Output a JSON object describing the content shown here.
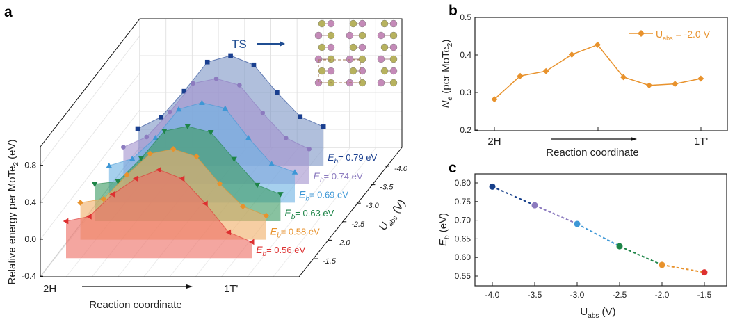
{
  "chart_data": [
    {
      "panel": "a",
      "type": "area",
      "ylabel": {
        "main": "Relative energy per MoTe",
        "sub": "2",
        "unit": " (eV)"
      },
      "xlabel": "Reaction coordinate",
      "x_start_label": "2H",
      "x_end_label": "1T'",
      "zlabel": {
        "main": "U",
        "sub": "abs",
        "unit": " (V)"
      },
      "yticks": [
        "0.8",
        "0.4",
        "0.0",
        "-0.4"
      ],
      "ytick_values": [
        0.8,
        0.4,
        0.0,
        -0.4
      ],
      "zticks": [
        "-1.5",
        "-2.0",
        "-2.5",
        "-3.0",
        "-3.5",
        "-4.0"
      ],
      "annotation": "TS",
      "series": [
        {
          "u": -4.0,
          "color": "#1a3f8f",
          "fill": "#7f97c6",
          "marker": "square",
          "eb_label": "= 0.79 eV",
          "values": [
            0,
            0.125,
            0.405,
            0.72,
            0.79,
            0.69,
            0.39,
            0.13,
            0.02
          ]
        },
        {
          "u": -3.5,
          "color": "#8c7bbf",
          "fill": "#a595cf",
          "marker": "circle",
          "eb_label": "= 0.74 eV",
          "values": [
            0,
            0.11,
            0.38,
            0.69,
            0.74,
            0.67,
            0.37,
            0.1,
            -0.02
          ]
        },
        {
          "u": -3.0,
          "color": "#3d97d6",
          "fill": "#6fb3e4",
          "marker": "triangle-up",
          "eb_label": "= 0.69 eV",
          "values": [
            0,
            0.075,
            0.3,
            0.61,
            0.68,
            0.62,
            0.3,
            0.02,
            -0.07
          ]
        },
        {
          "u": -2.5,
          "color": "#1e8548",
          "fill": "#3f9d66",
          "marker": "triangle-down",
          "eb_label": "= 0.63 eV",
          "values": [
            0,
            0.03,
            0.28,
            0.575,
            0.625,
            0.56,
            0.27,
            -0.01,
            -0.11
          ]
        },
        {
          "u": -2.0,
          "color": "#e8922c",
          "fill": "#f0b06a",
          "marker": "diamond",
          "eb_label": "= 0.58 eV",
          "values": [
            0,
            0.04,
            0.3,
            0.53,
            0.58,
            0.5,
            0.205,
            -0.04,
            -0.14
          ]
        },
        {
          "u": -1.5,
          "color": "#dd3030",
          "fill": "#ee6f66",
          "marker": "triangle-left",
          "eb_label": "= 0.56 eV",
          "values": [
            0,
            0.05,
            0.29,
            0.46,
            0.555,
            0.46,
            0.19,
            -0.12,
            -0.225
          ]
        }
      ],
      "eb_symbol": {
        "main": "E",
        "sub": "b"
      }
    },
    {
      "panel": "b",
      "type": "line",
      "ylabel": {
        "main": "N",
        "sub": "e",
        "mid": " (per MoTe",
        "sub2": "2",
        "end": ")"
      },
      "xlabel": "Reaction coordinate",
      "x_start_label": "2H",
      "x_end_label": "1T'",
      "ylim": [
        0.2,
        0.5
      ],
      "yticks": [
        "0.5",
        "0.4",
        "0.3",
        "0.2"
      ],
      "ytick_values": [
        0.5,
        0.4,
        0.3,
        0.2
      ],
      "color": "#e8922c",
      "legend": {
        "main": "U",
        "sub": "abs",
        "rest": " = -2.0 V",
        "placement": "top-right"
      },
      "values": [
        0.282,
        0.344,
        0.357,
        0.401,
        0.427,
        0.341,
        0.319,
        0.323,
        0.337
      ]
    },
    {
      "panel": "c",
      "type": "line",
      "ylabel": {
        "main": "E",
        "sub": "b",
        "unit": " (eV)"
      },
      "xlabel": {
        "main": "U",
        "sub": "abs",
        "unit": " (V)"
      },
      "xlim": [
        -4.15,
        -1.25
      ],
      "ylim": [
        0.54,
        0.81
      ],
      "xticks": [
        "-4.0",
        "-3.5",
        "-3.0",
        "-2.5",
        "-2.0",
        "-1.5"
      ],
      "xtick_values": [
        -4.0,
        -3.5,
        -3.0,
        -2.5,
        -2.0,
        -1.5
      ],
      "yticks": [
        "0.80",
        "0.75",
        "0.70",
        "0.65",
        "0.60",
        "0.55"
      ],
      "ytick_values": [
        0.8,
        0.75,
        0.7,
        0.65,
        0.6,
        0.55
      ],
      "x": [
        -4.0,
        -3.5,
        -3.0,
        -2.5,
        -2.0,
        -1.5
      ],
      "values": [
        0.79,
        0.74,
        0.69,
        0.63,
        0.58,
        0.56
      ],
      "colors": [
        "#163f8a",
        "#8c7bbf",
        "#3d97d6",
        "#1e8548",
        "#e8922c",
        "#dd3030"
      ],
      "line_style": "dashed"
    }
  ],
  "panel_letters": {
    "a": "a",
    "b": "b",
    "c": "c"
  }
}
